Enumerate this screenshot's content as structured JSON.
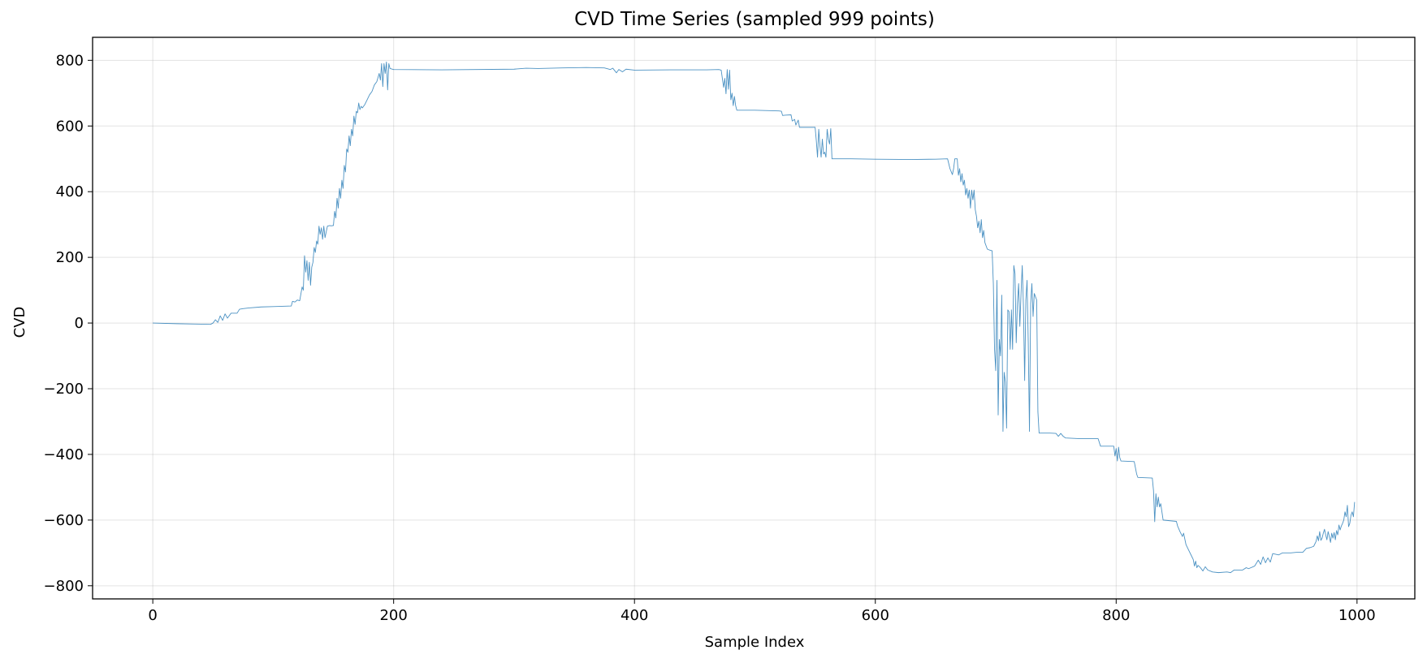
{
  "colors": {
    "series": "#1f77b4",
    "background": "#ffffff"
  },
  "chart_data": {
    "type": "line",
    "title": "CVD Time Series (sampled 999 points)",
    "xlabel": "Sample Index",
    "ylabel": "CVD",
    "xlim": [
      -50,
      1048
    ],
    "ylim": [
      -840,
      870
    ],
    "xticks": [
      0,
      200,
      400,
      600,
      800,
      1000
    ],
    "yticks": [
      -800,
      -600,
      -400,
      -200,
      0,
      200,
      400,
      600,
      800
    ],
    "xtick_labels": [
      "0",
      "200",
      "400",
      "600",
      "800",
      "1000"
    ],
    "ytick_labels": [
      "−800",
      "−600",
      "−400",
      "−200",
      "0",
      "200",
      "400",
      "600",
      "800"
    ],
    "grid": true,
    "series": [
      {
        "name": "CVD",
        "points": [
          [
            0,
            0
          ],
          [
            20,
            -2
          ],
          [
            35,
            -3
          ],
          [
            48,
            -4
          ],
          [
            50,
            0
          ],
          [
            52,
            10
          ],
          [
            54,
            2
          ],
          [
            56,
            22
          ],
          [
            58,
            8
          ],
          [
            60,
            28
          ],
          [
            62,
            15
          ],
          [
            63,
            20
          ],
          [
            65,
            30
          ],
          [
            70,
            30
          ],
          [
            72,
            42
          ],
          [
            75,
            44
          ],
          [
            80,
            46
          ],
          [
            90,
            49
          ],
          [
            100,
            50
          ],
          [
            115,
            52
          ],
          [
            116,
            66
          ],
          [
            118,
            64
          ],
          [
            120,
            70
          ],
          [
            122,
            68
          ],
          [
            124,
            110
          ],
          [
            125,
            100
          ],
          [
            126,
            205
          ],
          [
            127,
            155
          ],
          [
            128,
            190
          ],
          [
            129,
            130
          ],
          [
            130,
            185
          ],
          [
            131,
            115
          ],
          [
            132,
            170
          ],
          [
            133,
            185
          ],
          [
            134,
            230
          ],
          [
            135,
            215
          ],
          [
            136,
            250
          ],
          [
            137,
            240
          ],
          [
            138,
            295
          ],
          [
            139,
            270
          ],
          [
            140,
            290
          ],
          [
            141,
            255
          ],
          [
            142,
            295
          ],
          [
            143,
            260
          ],
          [
            145,
            295
          ],
          [
            147,
            297
          ],
          [
            148,
            296
          ],
          [
            150,
            297
          ],
          [
            151,
            340
          ],
          [
            152,
            320
          ],
          [
            153,
            380
          ],
          [
            154,
            350
          ],
          [
            155,
            410
          ],
          [
            156,
            380
          ],
          [
            157,
            435
          ],
          [
            158,
            410
          ],
          [
            159,
            480
          ],
          [
            160,
            460
          ],
          [
            161,
            530
          ],
          [
            162,
            520
          ],
          [
            163,
            570
          ],
          [
            164,
            540
          ],
          [
            165,
            590
          ],
          [
            166,
            570
          ],
          [
            167,
            630
          ],
          [
            168,
            605
          ],
          [
            169,
            645
          ],
          [
            170,
            640
          ],
          [
            171,
            670
          ],
          [
            172,
            650
          ],
          [
            173,
            660
          ],
          [
            174,
            655
          ],
          [
            176,
            665
          ],
          [
            178,
            680
          ],
          [
            180,
            695
          ],
          [
            182,
            705
          ],
          [
            184,
            725
          ],
          [
            186,
            735
          ],
          [
            188,
            760
          ],
          [
            189,
            740
          ],
          [
            190,
            790
          ],
          [
            191,
            720
          ],
          [
            192,
            790
          ],
          [
            193,
            760
          ],
          [
            194,
            795
          ],
          [
            195,
            710
          ],
          [
            196,
            790
          ],
          [
            197,
            775
          ],
          [
            200,
            772
          ],
          [
            240,
            771
          ],
          [
            300,
            773
          ],
          [
            310,
            776
          ],
          [
            320,
            775
          ],
          [
            340,
            777
          ],
          [
            360,
            778
          ],
          [
            375,
            777
          ],
          [
            380,
            772
          ],
          [
            382,
            776
          ],
          [
            385,
            762
          ],
          [
            387,
            772
          ],
          [
            390,
            765
          ],
          [
            393,
            773
          ],
          [
            400,
            770
          ],
          [
            430,
            771
          ],
          [
            460,
            771
          ],
          [
            470,
            772
          ],
          [
            472,
            770
          ],
          [
            474,
            718
          ],
          [
            475,
            745
          ],
          [
            476,
            698
          ],
          [
            477,
            772
          ],
          [
            478,
            712
          ],
          [
            479,
            770
          ],
          [
            480,
            680
          ],
          [
            481,
            700
          ],
          [
            482,
            662
          ],
          [
            483,
            690
          ],
          [
            484,
            662
          ],
          [
            485,
            648
          ],
          [
            500,
            648
          ],
          [
            520,
            646
          ],
          [
            522,
            645
          ],
          [
            523,
            632
          ],
          [
            525,
            633
          ],
          [
            530,
            634
          ],
          [
            531,
            615
          ],
          [
            533,
            620
          ],
          [
            534,
            603
          ],
          [
            536,
            618
          ],
          [
            537,
            596
          ],
          [
            545,
            596
          ],
          [
            550,
            596
          ],
          [
            551,
            555
          ],
          [
            552,
            505
          ],
          [
            553,
            590
          ],
          [
            554,
            540
          ],
          [
            555,
            505
          ],
          [
            556,
            560
          ],
          [
            557,
            515
          ],
          [
            558,
            520
          ],
          [
            559,
            505
          ],
          [
            560,
            590
          ],
          [
            561,
            560
          ],
          [
            562,
            545
          ],
          [
            563,
            592
          ],
          [
            564,
            500
          ],
          [
            580,
            500
          ],
          [
            600,
            499
          ],
          [
            630,
            498
          ],
          [
            650,
            499
          ],
          [
            660,
            500
          ],
          [
            662,
            470
          ],
          [
            664,
            452
          ],
          [
            665,
            470
          ],
          [
            666,
            500
          ],
          [
            668,
            500
          ],
          [
            669,
            450
          ],
          [
            670,
            470
          ],
          [
            671,
            430
          ],
          [
            672,
            455
          ],
          [
            673,
            420
          ],
          [
            674,
            435
          ],
          [
            675,
            390
          ],
          [
            676,
            410
          ],
          [
            677,
            380
          ],
          [
            678,
            405
          ],
          [
            679,
            350
          ],
          [
            680,
            405
          ],
          [
            681,
            375
          ],
          [
            682,
            405
          ],
          [
            683,
            345
          ],
          [
            684,
            325
          ],
          [
            685,
            290
          ],
          [
            686,
            310
          ],
          [
            687,
            275
          ],
          [
            688,
            315
          ],
          [
            689,
            260
          ],
          [
            690,
            282
          ],
          [
            691,
            245
          ],
          [
            692,
            235
          ],
          [
            693,
            225
          ],
          [
            695,
            222
          ],
          [
            697,
            220
          ],
          [
            698,
            120
          ],
          [
            699,
            -80
          ],
          [
            700,
            -145
          ],
          [
            701,
            130
          ],
          [
            702,
            -280
          ],
          [
            703,
            -50
          ],
          [
            704,
            -100
          ],
          [
            705,
            85
          ],
          [
            706,
            -330
          ],
          [
            707,
            -150
          ],
          [
            708,
            -180
          ],
          [
            709,
            -320
          ],
          [
            710,
            40
          ],
          [
            711,
            35
          ],
          [
            712,
            -80
          ],
          [
            713,
            40
          ],
          [
            714,
            -80
          ],
          [
            715,
            175
          ],
          [
            716,
            150
          ],
          [
            717,
            -60
          ],
          [
            718,
            60
          ],
          [
            719,
            120
          ],
          [
            720,
            -10
          ],
          [
            721,
            90
          ],
          [
            722,
            175
          ],
          [
            723,
            50
          ],
          [
            724,
            -175
          ],
          [
            725,
            70
          ],
          [
            726,
            130
          ],
          [
            727,
            -60
          ],
          [
            728,
            -330
          ],
          [
            729,
            60
          ],
          [
            730,
            120
          ],
          [
            731,
            20
          ],
          [
            732,
            90
          ],
          [
            733,
            80
          ],
          [
            734,
            70
          ],
          [
            735,
            -270
          ],
          [
            736,
            -335
          ],
          [
            745,
            -335
          ],
          [
            750,
            -336
          ],
          [
            752,
            -345
          ],
          [
            754,
            -336
          ],
          [
            756,
            -345
          ],
          [
            758,
            -350
          ],
          [
            770,
            -352
          ],
          [
            785,
            -352
          ],
          [
            787,
            -375
          ],
          [
            798,
            -375
          ],
          [
            799,
            -405
          ],
          [
            800,
            -382
          ],
          [
            801,
            -420
          ],
          [
            802,
            -378
          ],
          [
            803,
            -410
          ],
          [
            804,
            -420
          ],
          [
            815,
            -422
          ],
          [
            817,
            -460
          ],
          [
            818,
            -470
          ],
          [
            830,
            -472
          ],
          [
            831,
            -510
          ],
          [
            832,
            -605
          ],
          [
            833,
            -520
          ],
          [
            834,
            -560
          ],
          [
            835,
            -530
          ],
          [
            836,
            -560
          ],
          [
            837,
            -550
          ],
          [
            838,
            -575
          ],
          [
            839,
            -600
          ],
          [
            850,
            -604
          ],
          [
            851,
            -618
          ],
          [
            853,
            -635
          ],
          [
            855,
            -650
          ],
          [
            856,
            -640
          ],
          [
            858,
            -675
          ],
          [
            860,
            -690
          ],
          [
            862,
            -705
          ],
          [
            864,
            -720
          ],
          [
            865,
            -740
          ],
          [
            866,
            -725
          ],
          [
            867,
            -745
          ],
          [
            868,
            -738
          ],
          [
            870,
            -745
          ],
          [
            872,
            -755
          ],
          [
            874,
            -742
          ],
          [
            876,
            -752
          ],
          [
            880,
            -758
          ],
          [
            885,
            -760
          ],
          [
            892,
            -758
          ],
          [
            895,
            -760
          ],
          [
            898,
            -752
          ],
          [
            905,
            -752
          ],
          [
            908,
            -745
          ],
          [
            910,
            -748
          ],
          [
            915,
            -740
          ],
          [
            918,
            -722
          ],
          [
            920,
            -735
          ],
          [
            922,
            -712
          ],
          [
            924,
            -730
          ],
          [
            926,
            -715
          ],
          [
            928,
            -728
          ],
          [
            930,
            -702
          ],
          [
            935,
            -706
          ],
          [
            938,
            -700
          ],
          [
            945,
            -700
          ],
          [
            950,
            -698
          ],
          [
            955,
            -698
          ],
          [
            958,
            -686
          ],
          [
            961,
            -684
          ],
          [
            964,
            -680
          ],
          [
            966,
            -665
          ],
          [
            967,
            -648
          ],
          [
            968,
            -663
          ],
          [
            969,
            -635
          ],
          [
            970,
            -662
          ],
          [
            971,
            -655
          ],
          [
            972,
            -640
          ],
          [
            973,
            -628
          ],
          [
            974,
            -645
          ],
          [
            975,
            -660
          ],
          [
            976,
            -635
          ],
          [
            977,
            -650
          ],
          [
            978,
            -668
          ],
          [
            979,
            -640
          ],
          [
            980,
            -655
          ],
          [
            981,
            -638
          ],
          [
            982,
            -660
          ],
          [
            983,
            -632
          ],
          [
            984,
            -645
          ],
          [
            985,
            -615
          ],
          [
            986,
            -630
          ],
          [
            987,
            -618
          ],
          [
            988,
            -610
          ],
          [
            989,
            -600
          ],
          [
            990,
            -575
          ],
          [
            991,
            -590
          ],
          [
            992,
            -555
          ],
          [
            993,
            -620
          ],
          [
            994,
            -610
          ],
          [
            995,
            -585
          ],
          [
            996,
            -575
          ],
          [
            997,
            -590
          ],
          [
            998,
            -545
          ]
        ]
      }
    ]
  }
}
